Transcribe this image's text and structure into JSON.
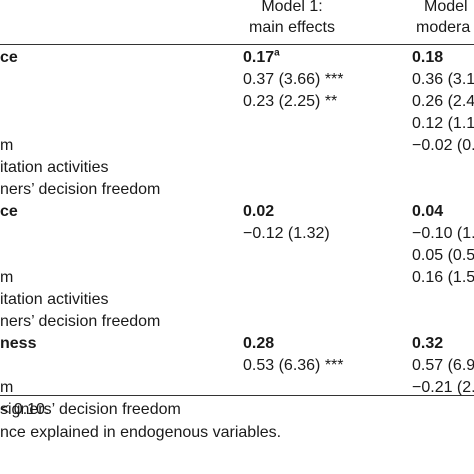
{
  "columns": {
    "model1": {
      "line1": "Model 1:",
      "line2": "main effects"
    },
    "model2": {
      "line1": "Model",
      "line2": "modera"
    }
  },
  "rows": [
    {
      "label": "ce",
      "m1": "0.17",
      "m1_sup": "a",
      "m2": "0.18",
      "bold": true
    },
    {
      "label": "",
      "m1": "0.37 (3.66) ***",
      "m2": "0.36 (3.1"
    },
    {
      "label": "",
      "m1": "0.23 (2.25) **",
      "m2": "0.26 (2.4"
    },
    {
      "label": "",
      "m1": "",
      "m2": "0.12 (1.1"
    },
    {
      "label": "m",
      "m1": "",
      "m2": "−0.02 (0.2"
    },
    {
      "label": "itation activities",
      "m1": "",
      "m2": ""
    },
    {
      "label": "ners’ decision freedom",
      "m1": "",
      "m2": ""
    },
    {
      "label": "ce",
      "m1": "0.02",
      "m2": "0.04",
      "bold": true
    },
    {
      "label": "",
      "m1": "−0.12 (1.32)",
      "m2": "−0.10 (1.1"
    },
    {
      "label": "",
      "m1": "",
      "m2": "0.05 (0.5"
    },
    {
      "label": "m",
      "m1": "",
      "m2": "0.16 (1.5"
    },
    {
      "label": "itation activities",
      "m1": "",
      "m2": ""
    },
    {
      "label": "ners’ decision freedom",
      "m1": "",
      "m2": ""
    },
    {
      "label": "ness",
      "m1": "0.28",
      "m2": "0.32",
      "bold": true
    },
    {
      "label": "",
      "m1": "0.53 (6.36) ***",
      "m2": "0.57 (6.9"
    },
    {
      "label": "m",
      "m1": "",
      "m2": "−0.21 (2.0"
    },
    {
      "label": "signers’ decision freedom",
      "m1": "",
      "m2": ""
    }
  ],
  "footnotes": [
    "< 0.10.",
    "nce explained in endogenous variables."
  ]
}
